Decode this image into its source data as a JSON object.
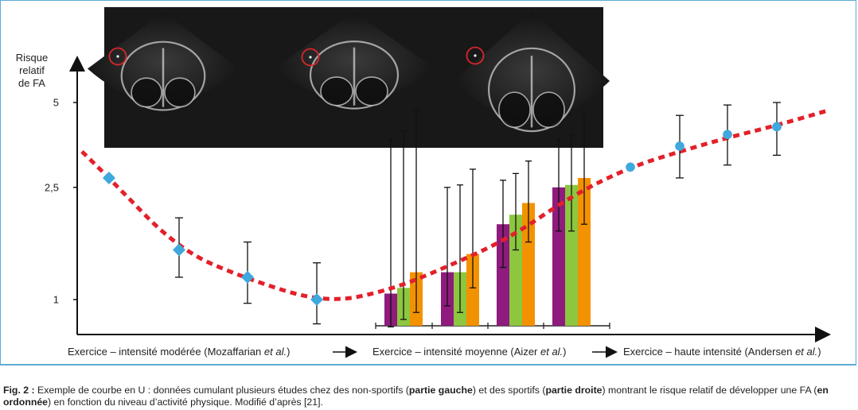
{
  "chart_data": {
    "type": "scatter",
    "ylabel": [
      "Risque",
      "relatif",
      "de FA"
    ],
    "yticks": [
      {
        "value": 5,
        "label": "5"
      },
      {
        "value": 2.5,
        "label": "2,5"
      },
      {
        "value": 1,
        "label": "1"
      }
    ],
    "y_scale": "log",
    "ylim": [
      0.65,
      8.2
    ],
    "x_captions": [
      {
        "text": "Exercice – intensité modérée (Mozaffarian ",
        "italic": "et al.",
        "end": ")"
      },
      {
        "text": "Exercice – intensité moyenne (Aizer ",
        "italic": "et al.",
        "end": ")"
      },
      {
        "text": "Exercice – haute intensité (Andersen ",
        "italic": "et al.",
        "end": ")"
      }
    ],
    "left_series": {
      "name": "Mozaffarian",
      "marker": "diamond",
      "points": [
        {
          "y": 2.7
        },
        {
          "y": 1.5,
          "low": 1.2,
          "high": 1.95
        },
        {
          "y": 1.2,
          "low": 0.97,
          "high": 1.6
        },
        {
          "y": 1.0,
          "low": 0.82,
          "high": 1.35
        }
      ]
    },
    "bar_groups": [
      {
        "bars": [
          {
            "color": "#8e1b7d",
            "value": 1.05,
            "low": 0.8,
            "high": 3.7
          },
          {
            "color": "#8dc63f",
            "value": 1.1,
            "low": 0.85,
            "high": 3.95
          },
          {
            "color": "#f39200",
            "value": 1.25,
            "low": 0.9,
            "high": 4.7
          }
        ]
      },
      {
        "bars": [
          {
            "color": "#8e1b7d",
            "value": 1.25,
            "low": 0.95,
            "high": 2.5
          },
          {
            "color": "#8dc63f",
            "value": 1.25,
            "low": 0.9,
            "high": 2.55
          },
          {
            "color": "#f39200",
            "value": 1.45,
            "low": 1.1,
            "high": 2.9
          }
        ]
      },
      {
        "bars": [
          {
            "color": "#8e1b7d",
            "value": 1.85,
            "low": 1.3,
            "high": 2.65
          },
          {
            "color": "#8dc63f",
            "value": 2.0,
            "low": 1.5,
            "high": 2.8
          },
          {
            "color": "#f39200",
            "value": 2.2,
            "low": 1.6,
            "high": 3.1
          }
        ]
      },
      {
        "bars": [
          {
            "color": "#8e1b7d",
            "value": 2.5,
            "low": 1.75,
            "high": 3.7
          },
          {
            "color": "#8dc63f",
            "value": 2.55,
            "low": 1.75,
            "high": 3.85
          },
          {
            "color": "#f39200",
            "value": 2.7,
            "low": 1.85,
            "high": 4.55
          }
        ]
      }
    ],
    "right_series": {
      "name": "Andersen",
      "marker": "circle",
      "points": [
        {
          "y": 2.95
        },
        {
          "y": 3.5,
          "low": 2.7,
          "high": 4.5
        },
        {
          "y": 3.85,
          "low": 3.0,
          "high": 4.9
        },
        {
          "y": 4.1,
          "low": 3.25,
          "high": 5.0
        }
      ]
    },
    "trend_curve": {
      "style": "dotted",
      "color": "#e3202a"
    }
  },
  "colors": {
    "frame": "#5ea9d6",
    "diamond": "#3fa8dc",
    "circle": "#3fa8dc",
    "purple": "#8e1b7d",
    "green": "#8dc63f",
    "orange": "#f39200",
    "trend": "#e3202a",
    "echo_bg": "#181818",
    "echo_marker": "#d9262b"
  },
  "echo_image": {
    "panels": 3,
    "markers": "red circles"
  },
  "caption": {
    "label": "Fig. 2 :",
    "t1": " Exemple de courbe en U : données cumulant plusieurs études chez des non-sportifs (",
    "b1": "partie gauche",
    "t2": ") et des sportifs (",
    "b2": "partie droite",
    "t3": ") montrant le risque relatif de développer une FA (",
    "b3": "en ordonnée",
    "t4": ") en fonction du niveau d’activité physique. Modifié d’après [21]."
  }
}
